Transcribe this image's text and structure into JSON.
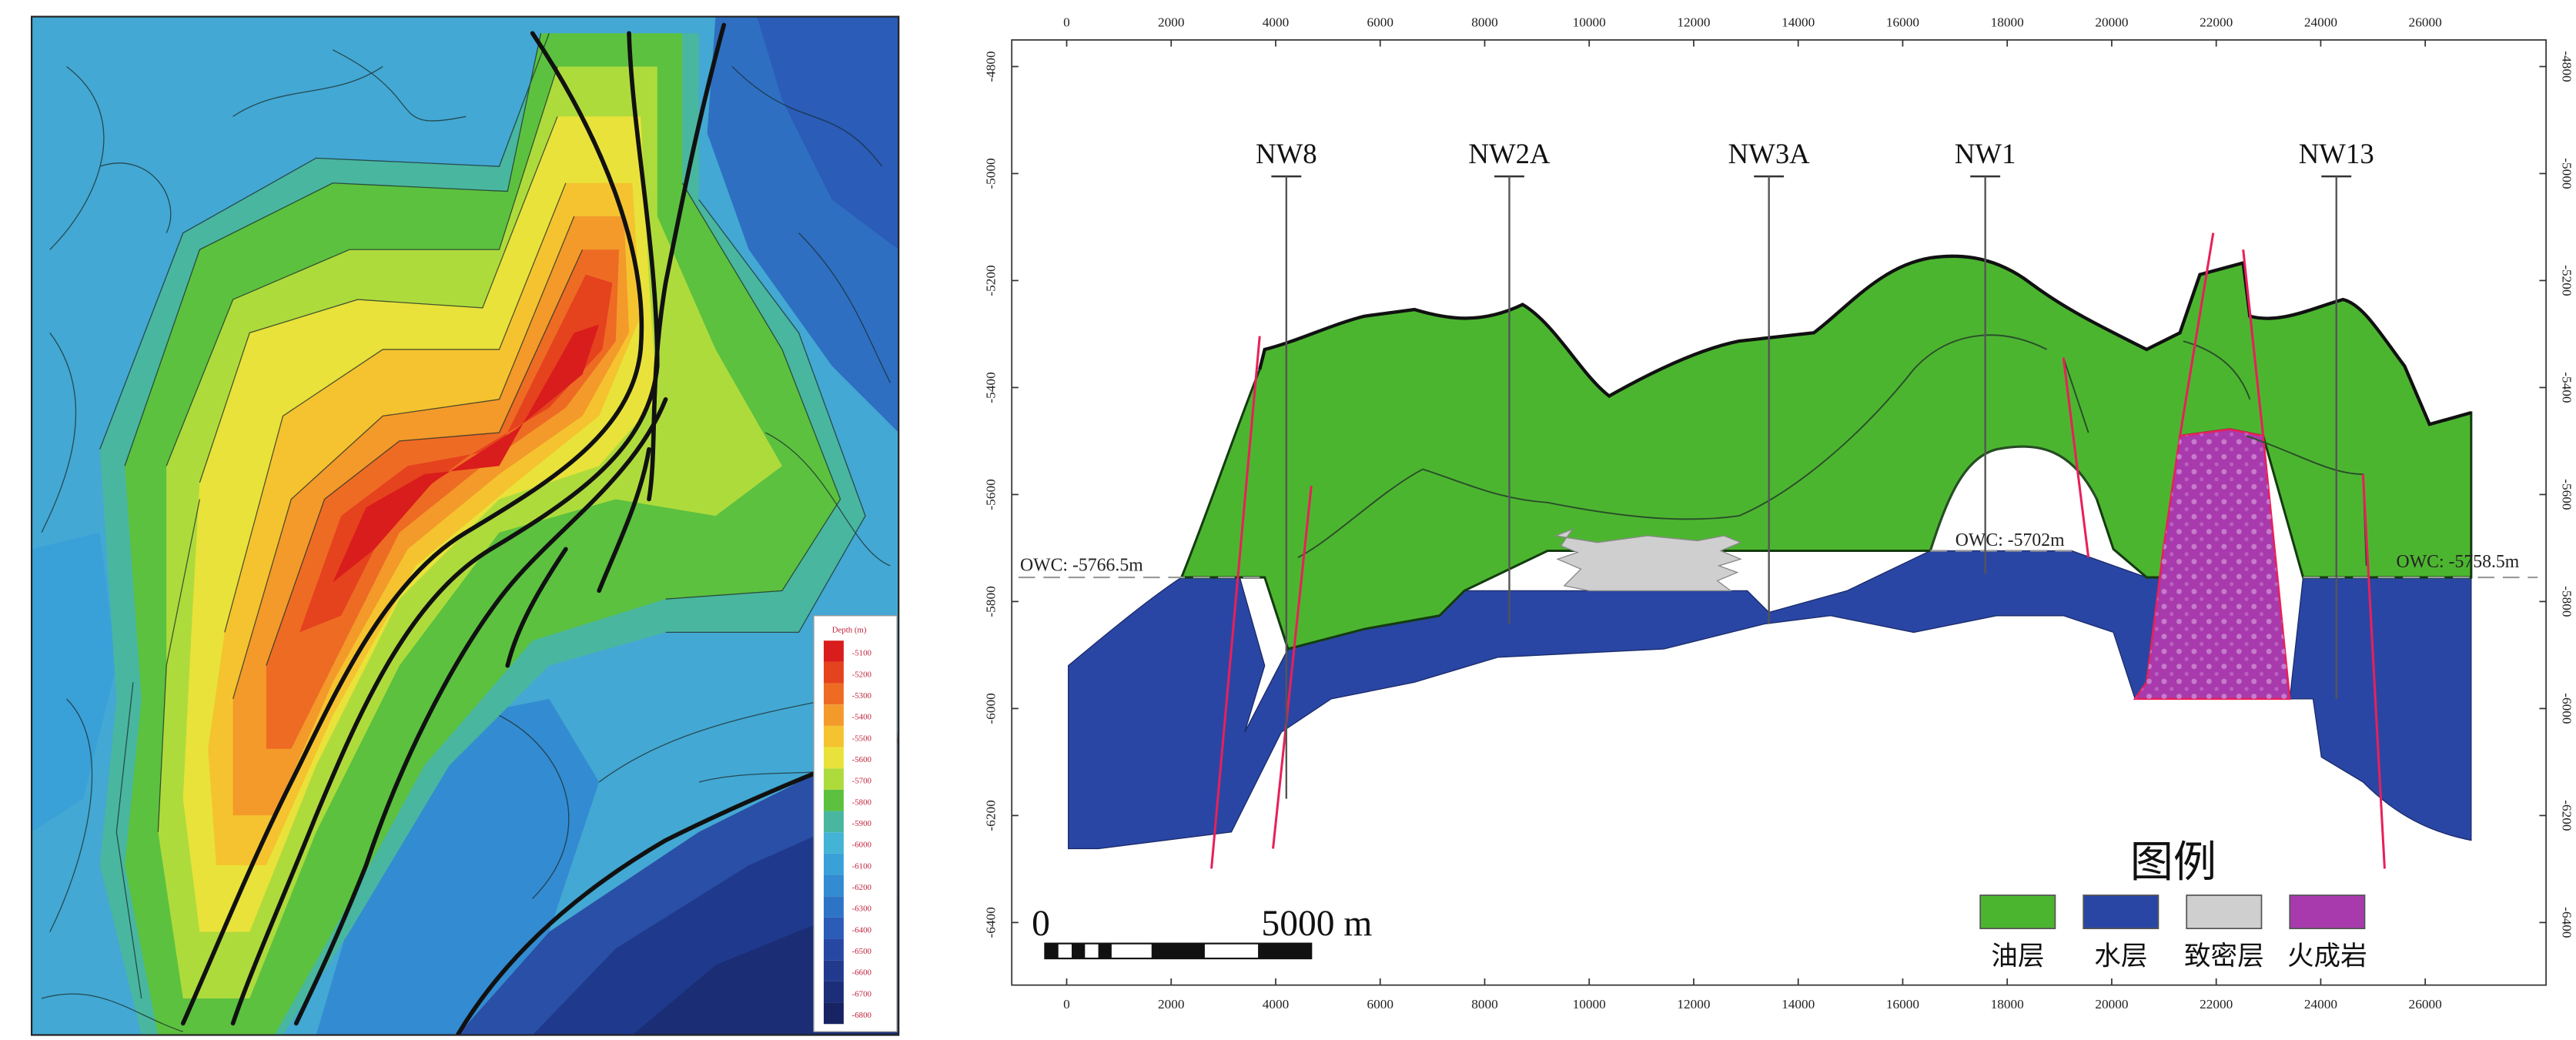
{
  "colors": {
    "oil": "#4cb530",
    "water": "#2a46a4",
    "tight": "#cfcfcf",
    "igneous": "#a83aad",
    "fault": "#e8205a",
    "contour_line": "#1b2a2a",
    "fault_map": "#111111"
  },
  "map_legend": {
    "title": "Depth (m)",
    "labels": [
      "-5100",
      "-5200",
      "-5300",
      "-5400",
      "-5500",
      "-5600",
      "-5700",
      "-5800",
      "-5900",
      "-6000",
      "-6100",
      "-6200",
      "-6300",
      "-6400",
      "-6500",
      "-6600",
      "-6700",
      "-6800"
    ],
    "colors": [
      "#d91c1c",
      "#e5421e",
      "#ee6b24",
      "#f39a2a",
      "#f5c32f",
      "#e9e23a",
      "#aedb3c",
      "#5cc13f",
      "#49b6a0",
      "#43b3d6",
      "#3aa0d8",
      "#338bd1",
      "#2e74c6",
      "#2a5cb8",
      "#2648a3",
      "#213a8e",
      "#1c2d79",
      "#182363"
    ]
  },
  "section": {
    "x_ticks": [
      "0",
      "2000",
      "4000",
      "6000",
      "8000",
      "10000",
      "12000",
      "14000",
      "16000",
      "18000",
      "20000",
      "22000",
      "24000",
      "26000"
    ],
    "y_ticks": [
      "-4800",
      "-5000",
      "-5200",
      "-5400",
      "-5600",
      "-5800",
      "-6000",
      "-6200",
      "-6400"
    ],
    "wells": [
      {
        "name": "NW8",
        "label_x": 773,
        "top_y": 108,
        "bottom_y": 480
      },
      {
        "name": "NW2A",
        "label_x": 907,
        "top_y": 108,
        "bottom_y": 375
      },
      {
        "name": "NW3A",
        "label_x": 1063,
        "top_y": 108,
        "bottom_y": 375
      },
      {
        "name": "NW1",
        "label_x": 1193,
        "top_y": 108,
        "bottom_y": 345
      },
      {
        "name": "NW13",
        "label_x": 1404,
        "top_y": 108,
        "bottom_y": 420
      }
    ],
    "owc_labels": [
      {
        "text": "OWC: -5766.5m"
      },
      {
        "text": "OWC: -5702m"
      },
      {
        "text": "OWC: -5758.5m"
      }
    ],
    "scale_bar": {
      "start": "0",
      "end": "5000 m"
    },
    "legend": {
      "title": "图例",
      "items": [
        {
          "label": "油层",
          "color": "#4cb530"
        },
        {
          "label": "水层",
          "color": "#2a46a4"
        },
        {
          "label": "致密层",
          "color": "#cfcfcf"
        },
        {
          "label": "火成岩",
          "color": "#a83aad"
        }
      ]
    }
  }
}
